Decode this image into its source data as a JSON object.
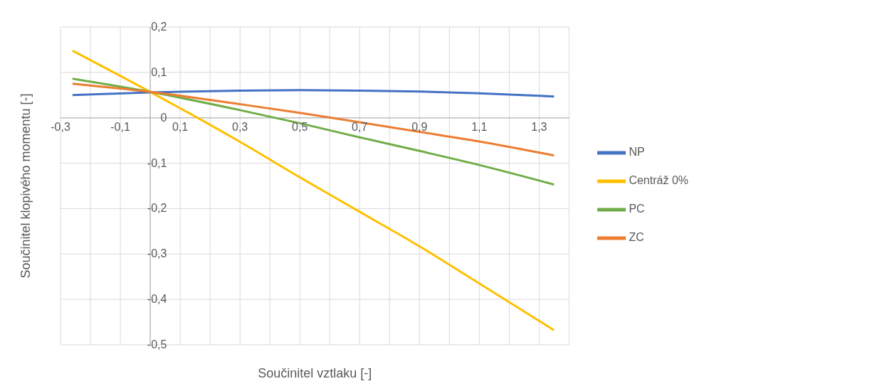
{
  "chart_data": {
    "type": "line",
    "xlabel": "Součinitel vztlaku [-]",
    "ylabel": "Součinitel klopivého momentu  [-]",
    "xlim": [
      -0.3,
      1.4
    ],
    "xticks": [
      {
        "value": -0.3,
        "label": "-0,3"
      },
      {
        "value": -0.2,
        "label": null
      },
      {
        "value": -0.1,
        "label": "-0,1"
      },
      {
        "value": 0,
        "label": null
      },
      {
        "value": 0.1,
        "label": "0,1"
      },
      {
        "value": 0.2,
        "label": null
      },
      {
        "value": 0.3,
        "label": "0,3"
      },
      {
        "value": 0.4,
        "label": null
      },
      {
        "value": 0.5,
        "label": "0,5"
      },
      {
        "value": 0.6,
        "label": null
      },
      {
        "value": 0.7,
        "label": "0,7"
      },
      {
        "value": 0.8,
        "label": null
      },
      {
        "value": 0.9,
        "label": "0,9"
      },
      {
        "value": 1.0,
        "label": null
      },
      {
        "value": 1.1,
        "label": "1,1"
      },
      {
        "value": 1.2,
        "label": null
      },
      {
        "value": 1.3,
        "label": "1,3"
      },
      {
        "value": 1.4,
        "label": null
      }
    ],
    "ylim": [
      -0.5,
      0.2
    ],
    "yticks": [
      {
        "value": -0.5,
        "label": "-0,5"
      },
      {
        "value": -0.4,
        "label": "-0,4"
      },
      {
        "value": -0.3,
        "label": "-0,3"
      },
      {
        "value": -0.2,
        "label": "-0,2"
      },
      {
        "value": -0.1,
        "label": "-0,1"
      },
      {
        "value": 0,
        "label": "0"
      },
      {
        "value": 0.1,
        "label": "0,1"
      },
      {
        "value": 0.2,
        "label": "0,2"
      }
    ],
    "grid": true,
    "legend": "right",
    "marker": "none",
    "x": [
      -0.26,
      0,
      0.3,
      0.5,
      0.7,
      0.9,
      1.1,
      1.35
    ],
    "series": [
      {
        "name": "NP",
        "color": "#4472c4",
        "values": [
          0.05,
          0.056,
          0.06,
          0.061,
          0.06,
          0.058,
          0.054,
          0.047
        ]
      },
      {
        "name": "Centráž 0%",
        "color": "#ffc000",
        "values": [
          0.148,
          0.057,
          -0.053,
          -0.131,
          -0.207,
          -0.283,
          -0.365,
          -0.468
        ]
      },
      {
        "name": "PC",
        "color": "#70ad47",
        "values": [
          0.086,
          0.057,
          0.017,
          -0.012,
          -0.043,
          -0.073,
          -0.104,
          -0.147
        ]
      },
      {
        "name": "ZC",
        "color": "#ed7d31",
        "values": [
          0.075,
          0.057,
          0.03,
          0.011,
          -0.01,
          -0.031,
          -0.052,
          -0.083
        ]
      }
    ]
  }
}
